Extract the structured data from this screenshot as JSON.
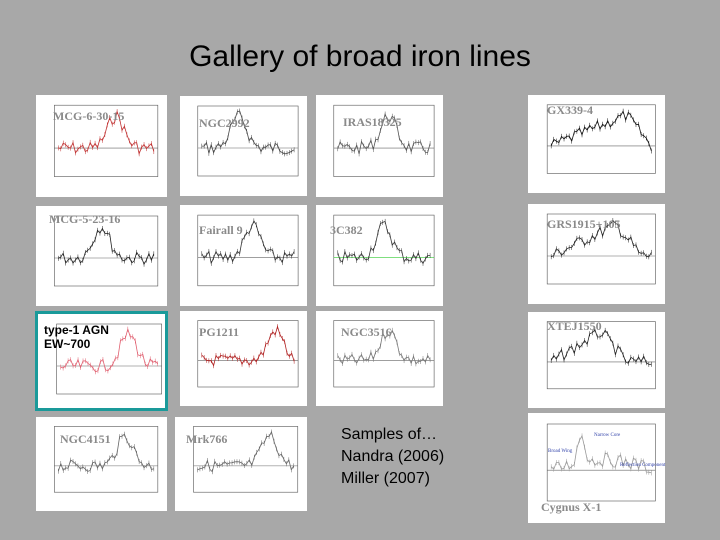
{
  "title": "Gallery of broad iron lines",
  "panels": [
    {
      "label": "MCG-6-30-15"
    },
    {
      "label": "NGC2992"
    },
    {
      "label": "IRAS18325"
    },
    {
      "label": "GX339-4"
    },
    {
      "label": "MCG-5-23-16"
    },
    {
      "label": "Fairall 9"
    },
    {
      "label": "3C382"
    },
    {
      "label": "GRS1915+105"
    },
    {
      "label": "type-1 AGN",
      "note": "EW~700"
    },
    {
      "label": "PG1211"
    },
    {
      "label": "NGC3516"
    },
    {
      "label": "XTEJ1550"
    },
    {
      "label": "NGC4151"
    },
    {
      "label": "Mrk766"
    },
    {
      "label": "Cygnus X-1",
      "annotations": [
        "Narrow Core",
        "Broad Wing",
        "Reflection Component"
      ]
    }
  ],
  "samples": [
    "Samples of…",
    "Nandra (2006)",
    "Miller (2007)"
  ]
}
